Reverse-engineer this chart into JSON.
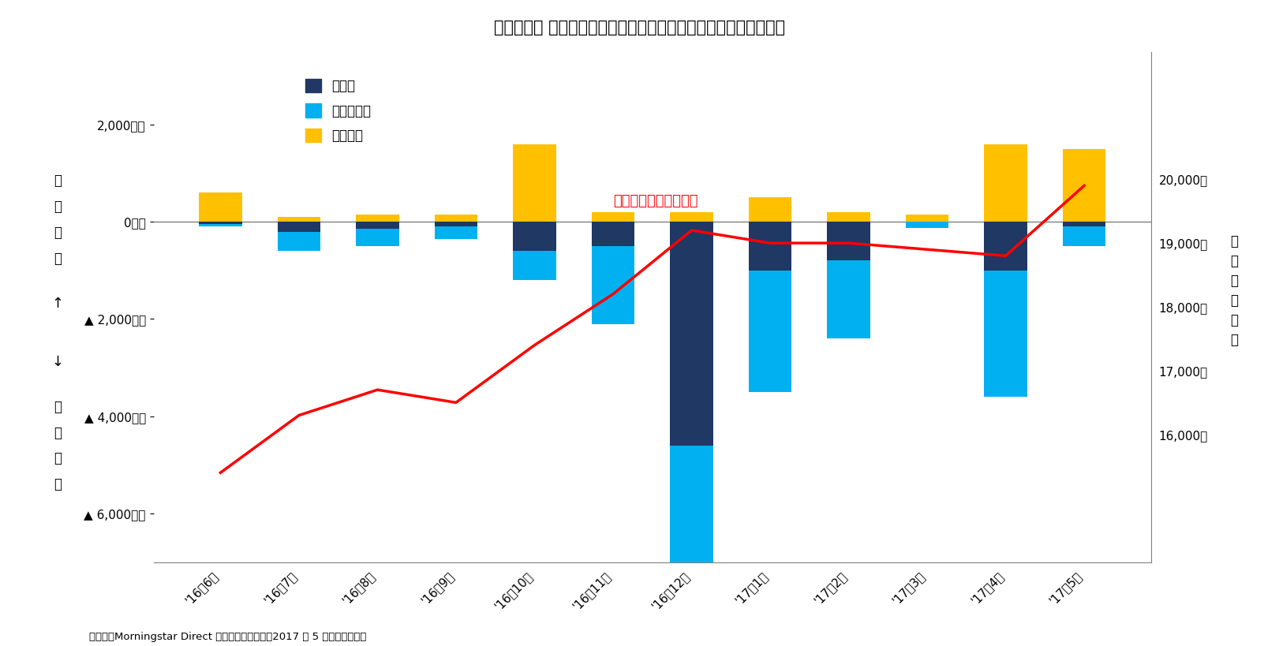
{
  "title": "【図表２】 国内株式ファンドの資金流出入と日経平均株価の推移",
  "categories": [
    "'16年6月",
    "'16年7月",
    "'16年8月",
    "'16年9月",
    "'16年10月",
    "'16年11月",
    "'16年12月",
    "'17年1月",
    "'17年2月",
    "'17年3月",
    "'17年4月",
    "'17年5月"
  ],
  "sono_ta": [
    -50,
    -200,
    -150,
    -100,
    -600,
    -500,
    -4600,
    -1000,
    -800,
    80,
    -1000,
    -100
  ],
  "active": [
    -50,
    -400,
    -350,
    -250,
    -600,
    -1600,
    -2500,
    -2500,
    -1600,
    -200,
    -2600,
    -400
  ],
  "passive": [
    600,
    100,
    150,
    150,
    1600,
    200,
    200,
    500,
    200,
    150,
    1600,
    1500
  ],
  "nikkei": [
    15400,
    16300,
    16700,
    16500,
    17400,
    18200,
    19200,
    19000,
    19000,
    18900,
    18800,
    19900
  ],
  "color_sono_ta": "#1F3864",
  "color_active": "#00B0F0",
  "color_passive": "#FFC000",
  "color_nikkei": "#FF0000",
  "yticks_left": [
    2000,
    0,
    -2000,
    -4000,
    -6000
  ],
  "ytick_labels_left": [
    "2,000億円",
    "0億円",
    "▲ 2,000億円",
    "▲ 4,000億円",
    "▲ 6,000億円"
  ],
  "yticks_right": [
    16000,
    17000,
    18000,
    19000,
    20000
  ],
  "ytick_labels_right": [
    "16,000円",
    "17,000円",
    "18,000円",
    "19,000円",
    "20,000円"
  ],
  "ylim_left": [
    -7000,
    3500
  ],
  "ylim_right": [
    14000,
    22000
  ],
  "legend_labels": [
    "その他",
    "アクティブ",
    "パッシブ"
  ],
  "nikkei_label": "日経平均株価（右軸）",
  "footnote": "（資料）Morningstar Direct を用いて筆者集計。2017 年 5 月のみ推計値。",
  "background_color": "#FFFFFF",
  "title_fontsize": 15,
  "tick_fontsize": 11,
  "legend_fontsize": 12,
  "annot_fontsize": 13
}
